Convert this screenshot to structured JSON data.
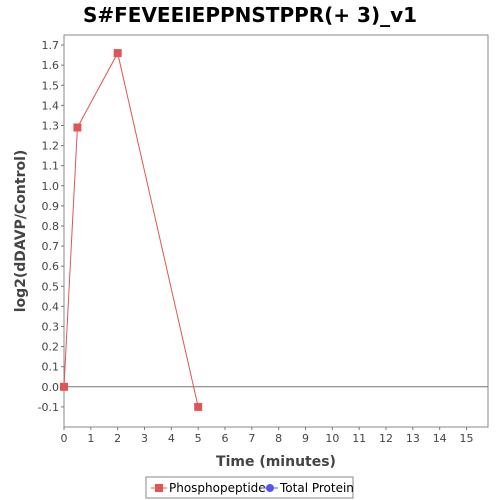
{
  "chart_data": {
    "type": "line",
    "title": "S#FEVEEIEPPNSTPPR(+ 3)_v1",
    "xlabel": "Time (minutes)",
    "ylabel": "log2(dDAVP/Control)",
    "xlim": [
      0,
      15.8
    ],
    "ylim": [
      -0.2,
      1.75
    ],
    "x_ticks": [
      "0",
      "1",
      "2",
      "3",
      "4",
      "5",
      "6",
      "7",
      "8",
      "9",
      "10",
      "11",
      "12",
      "13",
      "14",
      "15"
    ],
    "y_ticks": [
      "-0.1",
      "0.0",
      "0.1",
      "0.2",
      "0.3",
      "0.4",
      "0.5",
      "0.6",
      "0.7",
      "0.8",
      "0.9",
      "1.0",
      "1.1",
      "1.2",
      "1.3",
      "1.4",
      "1.5",
      "1.6",
      "1.7"
    ],
    "grid": false,
    "legend_position": "bottom",
    "zero_line": true,
    "series": [
      {
        "name": "Phosphopeptide",
        "color": "#e05555",
        "marker": "square",
        "points": [
          {
            "x": 0,
            "y": 0.0
          },
          {
            "x": 0.5,
            "y": 1.29
          },
          {
            "x": 2,
            "y": 1.66
          },
          {
            "x": 5,
            "y": -0.1
          }
        ]
      },
      {
        "name": "Total Protein",
        "color": "#5555ee",
        "marker": "circle",
        "points": []
      }
    ]
  }
}
